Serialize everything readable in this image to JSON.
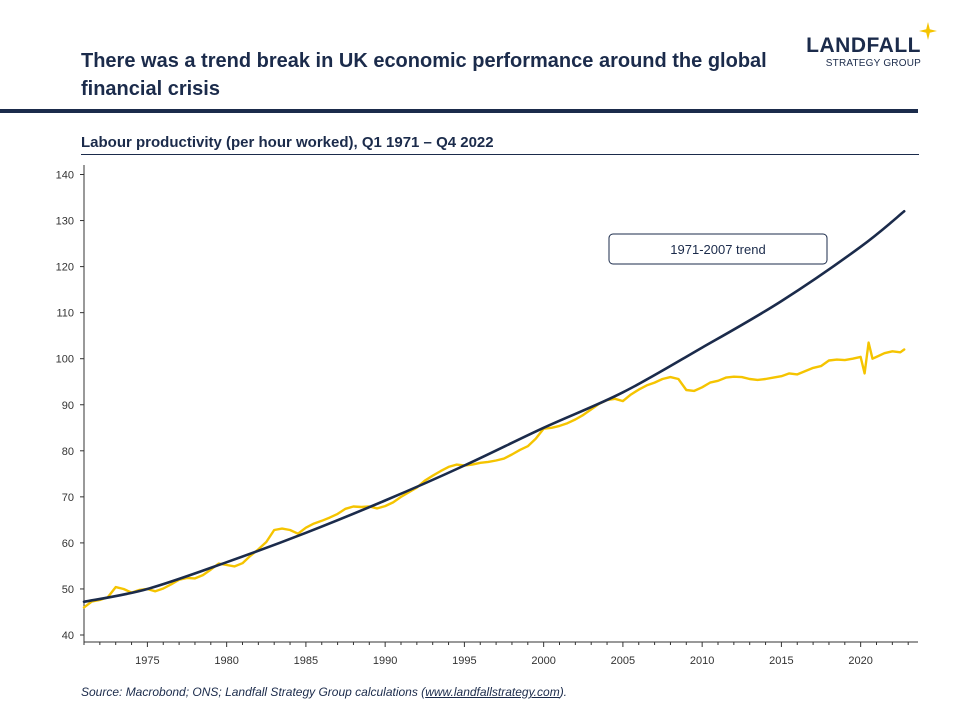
{
  "page": {
    "title": "There was a trend break in UK economic performance around the global financial crisis",
    "logo": {
      "name": "LANDFALL",
      "subtitle": "STRATEGY GROUP"
    },
    "source": {
      "prefix": "Source: Macrobond; ONS; Landfall Strategy Group calculations (",
      "link": "www.landfallstrategy.com",
      "suffix": ")."
    },
    "colors": {
      "navy": "#1b2b4b",
      "gold": "#f5c400"
    }
  },
  "chart_data": {
    "type": "line",
    "title": "Labour productivity (per hour worked), Q1 1971 – Q4 2022",
    "xlabel": "",
    "ylabel": "",
    "xlim": [
      1971,
      2023
    ],
    "ylim": [
      40,
      140
    ],
    "x_ticks": [
      1975,
      1980,
      1985,
      1990,
      1995,
      2000,
      2005,
      2010,
      2015,
      2020
    ],
    "y_ticks": [
      40,
      50,
      60,
      70,
      80,
      90,
      100,
      110,
      120,
      130,
      140
    ],
    "grid": false,
    "legend": "none",
    "annotation": {
      "text": "1971-2007 trend",
      "target_series": "trend"
    },
    "series": [
      {
        "key": "productivity",
        "color": "#f5c400",
        "points": [
          [
            1971.0,
            46.0
          ],
          [
            1971.5,
            47.3
          ],
          [
            1972.0,
            47.6
          ],
          [
            1972.5,
            48.2
          ],
          [
            1973.0,
            50.4
          ],
          [
            1973.5,
            50.0
          ],
          [
            1974.0,
            49.2
          ],
          [
            1974.5,
            49.8
          ],
          [
            1975.0,
            50.0
          ],
          [
            1975.5,
            49.5
          ],
          [
            1976.0,
            50.1
          ],
          [
            1976.5,
            51.0
          ],
          [
            1977.0,
            52.0
          ],
          [
            1977.5,
            52.4
          ],
          [
            1978.0,
            52.3
          ],
          [
            1978.5,
            53.0
          ],
          [
            1979.0,
            54.2
          ],
          [
            1979.5,
            55.5
          ],
          [
            1980.0,
            55.2
          ],
          [
            1980.5,
            54.9
          ],
          [
            1981.0,
            55.6
          ],
          [
            1981.5,
            57.2
          ],
          [
            1982.0,
            58.6
          ],
          [
            1982.5,
            60.2
          ],
          [
            1983.0,
            62.8
          ],
          [
            1983.5,
            63.1
          ],
          [
            1984.0,
            62.8
          ],
          [
            1984.5,
            62.0
          ],
          [
            1985.0,
            63.3
          ],
          [
            1985.5,
            64.2
          ],
          [
            1986.0,
            64.8
          ],
          [
            1986.5,
            65.5
          ],
          [
            1987.0,
            66.3
          ],
          [
            1987.5,
            67.4
          ],
          [
            1988.0,
            67.9
          ],
          [
            1988.5,
            67.8
          ],
          [
            1989.0,
            67.9
          ],
          [
            1989.5,
            67.5
          ],
          [
            1990.0,
            68.0
          ],
          [
            1990.5,
            68.8
          ],
          [
            1991.0,
            70.0
          ],
          [
            1991.5,
            71.0
          ],
          [
            1992.0,
            72.0
          ],
          [
            1992.5,
            73.5
          ],
          [
            1993.0,
            74.6
          ],
          [
            1993.5,
            75.6
          ],
          [
            1994.0,
            76.5
          ],
          [
            1994.5,
            77.0
          ],
          [
            1995.0,
            76.8
          ],
          [
            1995.5,
            77.0
          ],
          [
            1996.0,
            77.4
          ],
          [
            1996.5,
            77.6
          ],
          [
            1997.0,
            77.9
          ],
          [
            1997.5,
            78.3
          ],
          [
            1998.0,
            79.2
          ],
          [
            1998.5,
            80.2
          ],
          [
            1999.0,
            81.0
          ],
          [
            1999.5,
            82.6
          ],
          [
            2000.0,
            84.8
          ],
          [
            2000.5,
            85.0
          ],
          [
            2001.0,
            85.4
          ],
          [
            2001.5,
            86.0
          ],
          [
            2002.0,
            86.8
          ],
          [
            2002.5,
            87.8
          ],
          [
            2003.0,
            89.0
          ],
          [
            2003.5,
            90.2
          ],
          [
            2004.0,
            91.0
          ],
          [
            2004.5,
            91.3
          ],
          [
            2005.0,
            90.8
          ],
          [
            2005.5,
            92.2
          ],
          [
            2006.0,
            93.3
          ],
          [
            2006.5,
            94.2
          ],
          [
            2007.0,
            94.8
          ],
          [
            2007.5,
            95.6
          ],
          [
            2008.0,
            96.0
          ],
          [
            2008.5,
            95.6
          ],
          [
            2009.0,
            93.2
          ],
          [
            2009.5,
            93.0
          ],
          [
            2010.0,
            93.8
          ],
          [
            2010.5,
            94.8
          ],
          [
            2011.0,
            95.2
          ],
          [
            2011.5,
            95.9
          ],
          [
            2012.0,
            96.1
          ],
          [
            2012.5,
            96.0
          ],
          [
            2013.0,
            95.6
          ],
          [
            2013.5,
            95.4
          ],
          [
            2014.0,
            95.6
          ],
          [
            2014.5,
            95.9
          ],
          [
            2015.0,
            96.2
          ],
          [
            2015.5,
            96.8
          ],
          [
            2016.0,
            96.6
          ],
          [
            2016.5,
            97.3
          ],
          [
            2017.0,
            98.0
          ],
          [
            2017.5,
            98.4
          ],
          [
            2018.0,
            99.6
          ],
          [
            2018.5,
            99.8
          ],
          [
            2019.0,
            99.7
          ],
          [
            2019.5,
            100.0
          ],
          [
            2020.0,
            100.4
          ],
          [
            2020.25,
            96.8
          ],
          [
            2020.5,
            103.5
          ],
          [
            2020.75,
            100.0
          ],
          [
            2021.0,
            100.4
          ],
          [
            2021.5,
            101.2
          ],
          [
            2022.0,
            101.6
          ],
          [
            2022.5,
            101.4
          ],
          [
            2022.75,
            102.0
          ]
        ]
      },
      {
        "key": "trend",
        "color": "#1b2b4b",
        "points": [
          [
            1971,
            47.2
          ],
          [
            1975,
            50.0
          ],
          [
            1980,
            55.8
          ],
          [
            1985,
            62.2
          ],
          [
            1990,
            69.2
          ],
          [
            1995,
            76.8
          ],
          [
            2000,
            85.0
          ],
          [
            2005,
            92.7
          ],
          [
            2010,
            102.4
          ],
          [
            2015,
            112.5
          ],
          [
            2020,
            124.3
          ],
          [
            2022.75,
            132.0
          ]
        ]
      }
    ]
  }
}
